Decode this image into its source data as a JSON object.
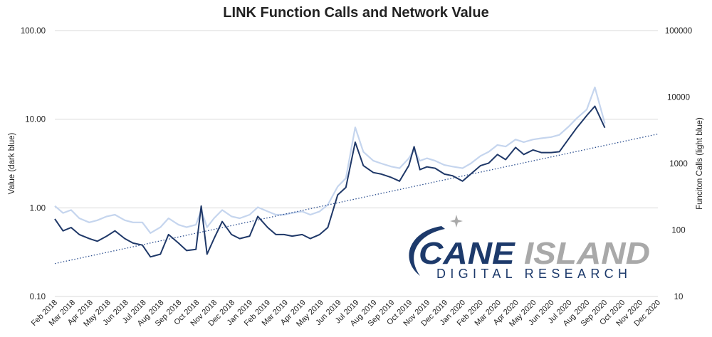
{
  "chart_data": {
    "type": "line",
    "title": "LINK Function Calls and Network Value",
    "ylabel_left": "Value (dark blue)",
    "ylabel_right": "Funciton Calls (light blue)",
    "y_scale": "log",
    "left_axis": {
      "ylim": [
        0.1,
        100
      ],
      "ticks": [
        "0.10",
        "1.00",
        "10.00",
        "100.00"
      ]
    },
    "right_axis": {
      "ylim": [
        10,
        100000
      ],
      "ticks": [
        "10",
        "100",
        "1000",
        "10000",
        "100000"
      ]
    },
    "x_ticks": [
      "Feb 2018",
      "Mar 2018",
      "Apr 2018",
      "May 2018",
      "Jun 2018",
      "Jul 2018",
      "Aug 2018",
      "Sep 2018",
      "Oct 2018",
      "Nov 2018",
      "Dec 2018",
      "Jan 2019",
      "Feb 2019",
      "Mar 2019",
      "Apr 2019",
      "May 2019",
      "Jun 2019",
      "Jul 2019",
      "Aug 2019",
      "Sep 2019",
      "Oct 2019",
      "Nov 2019",
      "Dec 2019",
      "Jan 2020",
      "Feb 2020",
      "Mar 2020",
      "Apr 2020",
      "May 2020",
      "Jun 2020",
      "Jul 2020",
      "Aug 2020",
      "Sep 2020",
      "Oct 2020",
      "Nov 2020",
      "Dec 2020"
    ],
    "grid": true,
    "series": [
      {
        "role": "value",
        "axis": "left",
        "color": "#1f3868",
        "points": [
          [
            "2018-02",
            0.75
          ],
          [
            "2018-02-15",
            0.55
          ],
          [
            "2018-03",
            0.6
          ],
          [
            "2018-03-15",
            0.5
          ],
          [
            "2018-04",
            0.45
          ],
          [
            "2018-04-15",
            0.42
          ],
          [
            "2018-05",
            0.48
          ],
          [
            "2018-05-15",
            0.55
          ],
          [
            "2018-06",
            0.45
          ],
          [
            "2018-06-15",
            0.4
          ],
          [
            "2018-07",
            0.38
          ],
          [
            "2018-07-15",
            0.28
          ],
          [
            "2018-08",
            0.3
          ],
          [
            "2018-08-15",
            0.5
          ],
          [
            "2018-09",
            0.4
          ],
          [
            "2018-09-15",
            0.33
          ],
          [
            "2018-10",
            0.34
          ],
          [
            "2018-10-10",
            1.05
          ],
          [
            "2018-10-20",
            0.3
          ],
          [
            "2018-11",
            0.45
          ],
          [
            "2018-11-15",
            0.7
          ],
          [
            "2018-12",
            0.5
          ],
          [
            "2018-12-15",
            0.45
          ],
          [
            "2019-01",
            0.48
          ],
          [
            "2019-01-15",
            0.8
          ],
          [
            "2019-02",
            0.6
          ],
          [
            "2019-02-15",
            0.5
          ],
          [
            "2019-03",
            0.5
          ],
          [
            "2019-03-15",
            0.48
          ],
          [
            "2019-04",
            0.5
          ],
          [
            "2019-04-15",
            0.45
          ],
          [
            "2019-05",
            0.5
          ],
          [
            "2019-05-15",
            0.6
          ],
          [
            "2019-06",
            1.4
          ],
          [
            "2019-06-15",
            1.7
          ],
          [
            "2019-07",
            5.5
          ],
          [
            "2019-07-15",
            3.0
          ],
          [
            "2019-08",
            2.5
          ],
          [
            "2019-08-15",
            2.4
          ],
          [
            "2019-09",
            2.2
          ],
          [
            "2019-09-15",
            2.0
          ],
          [
            "2019-10",
            3.0
          ],
          [
            "2019-10-10",
            4.9
          ],
          [
            "2019-10-20",
            2.7
          ],
          [
            "2019-11",
            2.9
          ],
          [
            "2019-11-15",
            2.8
          ],
          [
            "2019-12",
            2.4
          ],
          [
            "2019-12-15",
            2.3
          ],
          [
            "2020-01",
            2.0
          ],
          [
            "2020-01-15",
            2.4
          ],
          [
            "2020-02",
            3.0
          ],
          [
            "2020-02-15",
            3.2
          ],
          [
            "2020-03",
            4.0
          ],
          [
            "2020-03-15",
            3.5
          ],
          [
            "2020-04",
            4.8
          ],
          [
            "2020-04-15",
            4.0
          ],
          [
            "2020-05",
            4.5
          ],
          [
            "2020-05-15",
            4.2
          ],
          [
            "2020-06",
            4.2
          ],
          [
            "2020-06-15",
            4.3
          ],
          [
            "2020-07",
            6.0
          ],
          [
            "2020-07-15",
            8.0
          ],
          [
            "2020-08",
            11.0
          ],
          [
            "2020-08-15",
            14.0
          ],
          [
            "2020-09",
            8.0
          ]
        ]
      },
      {
        "role": "function_calls",
        "axis": "right",
        "color": "#c5d5ee",
        "points": [
          [
            "2018-02",
            230
          ],
          [
            "2018-02-15",
            180
          ],
          [
            "2018-03",
            200
          ],
          [
            "2018-03-15",
            150
          ],
          [
            "2018-04",
            130
          ],
          [
            "2018-04-15",
            140
          ],
          [
            "2018-05",
            160
          ],
          [
            "2018-05-15",
            170
          ],
          [
            "2018-06",
            140
          ],
          [
            "2018-06-15",
            130
          ],
          [
            "2018-07",
            130
          ],
          [
            "2018-07-15",
            90
          ],
          [
            "2018-08",
            110
          ],
          [
            "2018-08-15",
            150
          ],
          [
            "2018-09",
            120
          ],
          [
            "2018-09-15",
            110
          ],
          [
            "2018-10",
            120
          ],
          [
            "2018-10-10",
            200
          ],
          [
            "2018-10-20",
            110
          ],
          [
            "2018-11",
            150
          ],
          [
            "2018-11-15",
            200
          ],
          [
            "2018-12",
            160
          ],
          [
            "2018-12-15",
            150
          ],
          [
            "2019-01",
            170
          ],
          [
            "2019-01-15",
            220
          ],
          [
            "2019-02",
            190
          ],
          [
            "2019-02-15",
            170
          ],
          [
            "2019-03",
            170
          ],
          [
            "2019-03-15",
            180
          ],
          [
            "2019-04",
            190
          ],
          [
            "2019-04-15",
            170
          ],
          [
            "2019-05",
            190
          ],
          [
            "2019-05-15",
            240
          ],
          [
            "2019-06",
            450
          ],
          [
            "2019-06-15",
            600
          ],
          [
            "2019-07",
            3500
          ],
          [
            "2019-07-15",
            1500
          ],
          [
            "2019-08",
            1100
          ],
          [
            "2019-08-15",
            1000
          ],
          [
            "2019-09",
            900
          ],
          [
            "2019-09-15",
            850
          ],
          [
            "2019-10",
            1200
          ],
          [
            "2019-10-10",
            1600
          ],
          [
            "2019-10-20",
            1100
          ],
          [
            "2019-11",
            1200
          ],
          [
            "2019-11-15",
            1100
          ],
          [
            "2019-12",
            950
          ],
          [
            "2019-12-15",
            900
          ],
          [
            "2020-01",
            850
          ],
          [
            "2020-01-15",
            1000
          ],
          [
            "2020-02",
            1300
          ],
          [
            "2020-02-15",
            1500
          ],
          [
            "2020-03",
            1900
          ],
          [
            "2020-03-15",
            1800
          ],
          [
            "2020-04",
            2300
          ],
          [
            "2020-04-15",
            2100
          ],
          [
            "2020-05",
            2300
          ],
          [
            "2020-05-15",
            2400
          ],
          [
            "2020-06",
            2500
          ],
          [
            "2020-06-15",
            2700
          ],
          [
            "2020-07",
            3600
          ],
          [
            "2020-07-15",
            4800
          ],
          [
            "2020-08",
            6500
          ],
          [
            "2020-08-15",
            14000
          ],
          [
            "2020-09",
            4000
          ]
        ]
      },
      {
        "role": "trendline",
        "axis": "left",
        "style": "dotted",
        "color": "#2b4e8f",
        "points": [
          [
            "2018-02",
            0.235
          ],
          [
            "2020-12",
            6.8
          ]
        ]
      }
    ]
  },
  "logo": {
    "name": "CANE ISLAND",
    "subtitle": "DIGITAL RESEARCH",
    "colors": {
      "navy": "#1d3a6b",
      "gray": "#a9a9a9"
    }
  }
}
